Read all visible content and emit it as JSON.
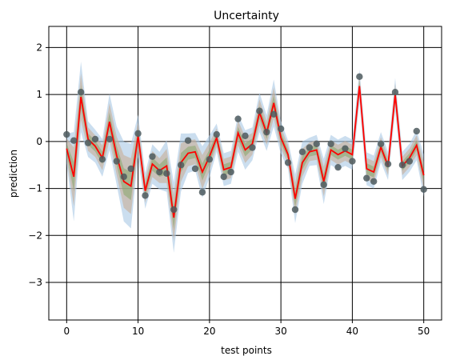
{
  "chart_data": {
    "type": "line",
    "title": "Uncertainty",
    "xlabel": "test points",
    "ylabel": "prediction",
    "xlim": [
      -2.5,
      52.5
    ],
    "ylim": [
      -3.8,
      2.45
    ],
    "xticks": [
      0,
      10,
      20,
      30,
      40,
      50
    ],
    "yticks": [
      -3,
      -2,
      -1,
      0,
      1,
      2
    ],
    "xtick_labels": [
      "0",
      "10",
      "20",
      "30",
      "40",
      "50"
    ],
    "ytick_labels": [
      "−3",
      "−2",
      "−1",
      "0",
      "1",
      "2"
    ],
    "grid": true,
    "x": [
      0,
      1,
      2,
      3,
      4,
      5,
      6,
      7,
      8,
      9,
      10,
      11,
      12,
      13,
      14,
      15,
      16,
      17,
      18,
      19,
      20,
      21,
      22,
      23,
      24,
      25,
      26,
      27,
      28,
      29,
      30,
      31,
      32,
      33,
      34,
      35,
      36,
      37,
      38,
      39,
      40,
      41,
      42,
      43,
      44,
      45,
      46,
      47,
      48,
      49,
      50
    ],
    "points": [
      0.15,
      0.02,
      1.05,
      -0.03,
      0.05,
      -0.38,
      0.05,
      -0.42,
      -0.75,
      -0.58,
      0.17,
      -1.15,
      -0.32,
      -0.65,
      -0.68,
      -1.45,
      -0.5,
      0.02,
      -0.58,
      -1.08,
      -0.38,
      0.15,
      -0.75,
      -0.65,
      0.48,
      0.12,
      -0.13,
      0.65,
      0.2,
      0.58,
      0.27,
      -0.45,
      -1.45,
      -0.22,
      -0.13,
      -0.05,
      -0.92,
      -0.05,
      -0.55,
      -0.15,
      -0.42,
      1.38,
      -0.78,
      -0.85,
      -0.05,
      -0.48,
      1.05,
      -0.5,
      -0.42,
      0.22,
      -1.02
    ],
    "mean": [
      -0.15,
      -0.75,
      0.95,
      0.05,
      -0.1,
      -0.35,
      0.42,
      -0.3,
      -0.85,
      -0.95,
      0.12,
      -1.05,
      -0.48,
      -0.62,
      -0.52,
      -1.62,
      -0.45,
      -0.25,
      -0.22,
      -0.65,
      -0.32,
      0.08,
      -0.6,
      -0.55,
      0.18,
      -0.18,
      -0.05,
      0.62,
      0.18,
      0.82,
      0.08,
      -0.28,
      -1.22,
      -0.45,
      -0.22,
      -0.18,
      -0.85,
      -0.18,
      -0.28,
      -0.2,
      -0.28,
      1.18,
      -0.58,
      -0.65,
      -0.12,
      -0.52,
      1.0,
      -0.52,
      -0.35,
      -0.08,
      -0.72
    ],
    "band_outer": [
      0.32,
      0.95,
      0.75,
      0.38,
      0.35,
      0.4,
      0.6,
      0.62,
      0.85,
      0.9,
      0.45,
      0.38,
      0.42,
      0.4,
      0.55,
      0.75,
      0.62,
      0.42,
      0.4,
      0.55,
      0.45,
      0.3,
      0.35,
      0.35,
      0.4,
      0.42,
      0.35,
      0.42,
      0.38,
      0.5,
      0.35,
      0.3,
      0.52,
      0.45,
      0.3,
      0.32,
      0.48,
      0.32,
      0.32,
      0.32,
      0.32,
      0.35,
      0.35,
      0.35,
      0.32,
      0.3,
      0.35,
      0.3,
      0.3,
      0.32,
      0.45
    ],
    "colors": {
      "line": "#ff0000",
      "points": "#4d5b5e",
      "band_outer": "#a8c8e4",
      "band_middle": "#c8aa8e",
      "band_inner": "#86a56a",
      "grid": "#000000"
    }
  }
}
